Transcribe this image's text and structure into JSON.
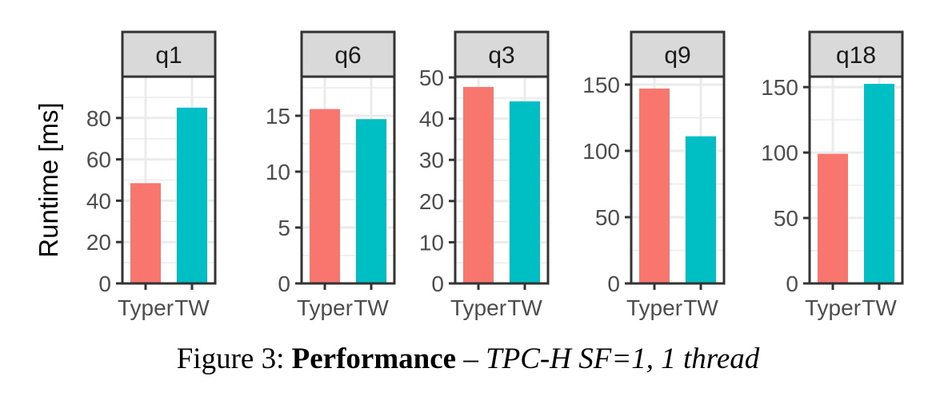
{
  "ylabel": "Runtime [ms]",
  "caption": {
    "prefix": "Figure 3: ",
    "bold": "Performance",
    "dash": " – ",
    "italic": "TPC-H SF=1, 1 thread"
  },
  "colors": {
    "Typer": "#F8766D",
    "TW": "#00BFC4",
    "strip_fill": "#D9D9D9",
    "grid": "#EBEBEB",
    "frame": "#333333"
  },
  "chart_data": [
    {
      "type": "bar",
      "title": "q1",
      "categories": [
        "Typer",
        "TW"
      ],
      "values": [
        48.5,
        85
      ],
      "ylim": [
        0,
        100
      ],
      "yticks": [
        0,
        20,
        40,
        60,
        80
      ],
      "minor": [
        10,
        30,
        50,
        70,
        90
      ],
      "ylabel": "Runtime [ms]"
    },
    {
      "type": "bar",
      "title": "q6",
      "categories": [
        "Typer",
        "TW"
      ],
      "values": [
        15.6,
        14.7
      ],
      "ylim": [
        0,
        18.5
      ],
      "yticks": [
        0,
        5,
        10,
        15
      ],
      "minor": [
        2.5,
        7.5,
        12.5,
        17.5
      ],
      "ylabel": ""
    },
    {
      "type": "bar",
      "title": "q3",
      "categories": [
        "Typer",
        "TW"
      ],
      "values": [
        47.7,
        44.2
      ],
      "ylim": [
        0,
        50.2
      ],
      "yticks": [
        0,
        10,
        20,
        30,
        40,
        50
      ],
      "minor": [
        5,
        15,
        25,
        35,
        45
      ],
      "ylabel": ""
    },
    {
      "type": "bar",
      "title": "q9",
      "categories": [
        "Typer",
        "TW"
      ],
      "values": [
        147,
        111
      ],
      "ylim": [
        0,
        156
      ],
      "yticks": [
        0,
        50,
        100,
        150
      ],
      "minor": [
        25,
        75,
        125
      ],
      "ylabel": ""
    },
    {
      "type": "bar",
      "title": "q18",
      "categories": [
        "Typer",
        "TW"
      ],
      "values": [
        99,
        152.5
      ],
      "ylim": [
        0,
        158
      ],
      "yticks": [
        0,
        50,
        100,
        150
      ],
      "minor": [
        25,
        75,
        125
      ],
      "ylabel": ""
    }
  ]
}
